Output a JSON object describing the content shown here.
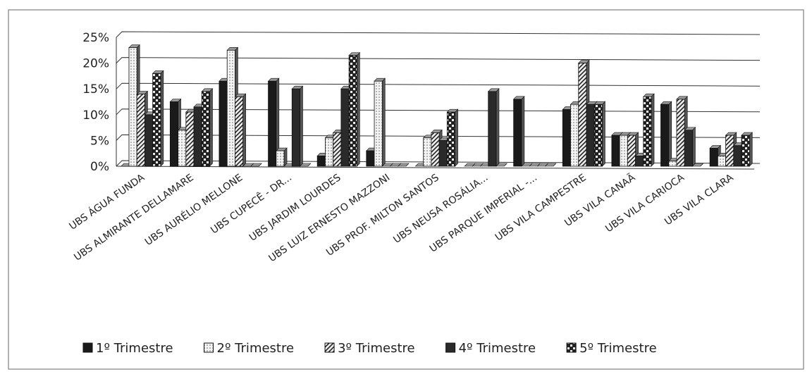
{
  "chart_data": {
    "type": "bar",
    "categories": [
      "UBS ÁGUA FUNDA",
      "UBS ALMIRANTE DELLAMARE",
      "UBS AURÉLIO MELLONE",
      "UBS CUPECÊ - DR...",
      "UBS JARDIM LOURDES",
      "UBS LUIZ ERNESTO MAZZONI",
      "UBS PROF. MILTON SANTOS",
      "UBS NEUSA ROSÁLIA...",
      "UBS PARQUE IMPERIAL -...",
      "UBS VILA CAMPESTRE",
      "UBS VILA CANAÃ",
      "UBS VILA CARIOCA",
      "UBS VILA CLARA"
    ],
    "series": [
      {
        "name": "1º Trimestre",
        "color": "#1a1a1a",
        "pattern": "solid",
        "values": [
          0,
          12.5,
          16.5,
          16.5,
          2,
          3,
          0,
          0,
          13,
          11,
          6,
          12,
          3.5
        ]
      },
      {
        "name": "2º Trimestre",
        "color": "#f2f2f2",
        "pattern": "dots",
        "values": [
          23,
          7,
          22.5,
          3,
          5.5,
          16.5,
          5.5,
          0,
          0,
          12,
          6,
          1,
          2
        ]
      },
      {
        "name": "3º Trimestre",
        "color": "#e8e8e8",
        "pattern": "hatch",
        "values": [
          14,
          10.5,
          13.5,
          0,
          6.5,
          0,
          6.5,
          0,
          0,
          20,
          6,
          13,
          6
        ]
      },
      {
        "name": "4º Trimestre",
        "color": "#2a2a2a",
        "pattern": "solid",
        "values": [
          10,
          11.5,
          0,
          15,
          15,
          0,
          5,
          14.5,
          0,
          12,
          2,
          7,
          4
        ]
      },
      {
        "name": "5º Trimestre",
        "color": "#333333",
        "pattern": "checker",
        "values": [
          18,
          14.5,
          0,
          0,
          21.5,
          0,
          10.5,
          0,
          0,
          12,
          13.5,
          0,
          6
        ]
      }
    ],
    "ylim": [
      0,
      25
    ],
    "yticks": [
      {
        "value": 0,
        "label": "0%"
      },
      {
        "value": 5,
        "label": "5%"
      },
      {
        "value": 10,
        "label": "10%"
      },
      {
        "value": 15,
        "label": "15%"
      },
      {
        "value": 20,
        "label": "20%"
      },
      {
        "value": 25,
        "label": "25%"
      }
    ],
    "grid": true
  }
}
